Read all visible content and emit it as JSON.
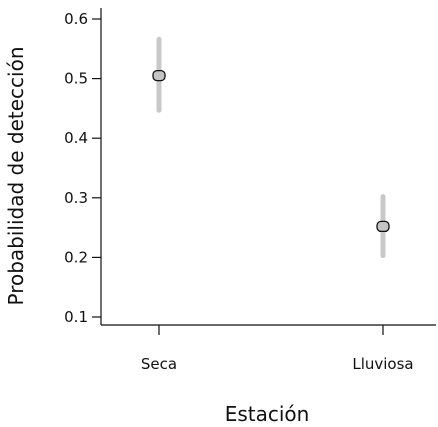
{
  "chart_data": {
    "type": "scatter",
    "title": "",
    "xlabel": "Estación",
    "ylabel": "Probabilidad de detección",
    "categories": [
      "Seca",
      "Lluviosa"
    ],
    "series": [
      {
        "values": [
          0.505,
          0.252
        ],
        "lower": [
          0.447,
          0.203
        ],
        "upper": [
          0.566,
          0.302
        ]
      }
    ],
    "y_ticks": [
      0.1,
      0.2,
      0.3,
      0.4,
      0.5,
      0.6
    ],
    "y_tick_labels": [
      "0.1",
      "0.2",
      "0.3",
      "0.4",
      "0.5",
      "0.6"
    ],
    "ylim": [
      0.08,
      0.62
    ],
    "grid": false,
    "legend": "none",
    "colors": {
      "point_fill": "#c4c4c4",
      "error_bar": "#c8c8c8",
      "axis": "#111111"
    }
  }
}
